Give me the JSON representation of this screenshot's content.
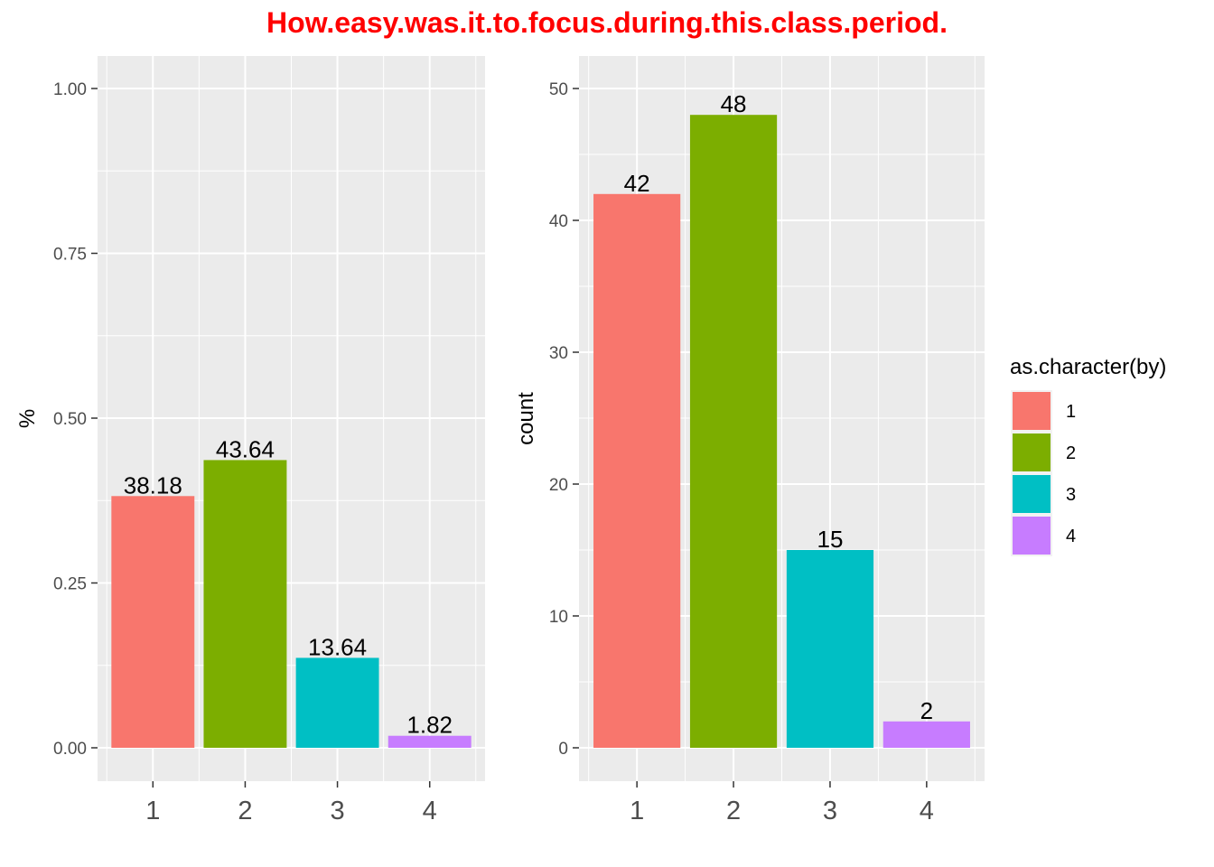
{
  "title": "How.easy.was.it.to.focus.during.this.class.period.",
  "colors": {
    "title": "#ff0000",
    "panel_bg": "#ebebeb",
    "grid": "#ffffff",
    "tick_text": "#4d4d4d",
    "label_text": "#000000",
    "series": [
      "#f8766d",
      "#7cae00",
      "#00bfc4",
      "#c77cff"
    ]
  },
  "legend": {
    "title": "as.character(by)",
    "position": "right",
    "items": [
      "1",
      "2",
      "3",
      "4"
    ]
  },
  "chart_data": [
    {
      "type": "bar",
      "categories": [
        "1",
        "2",
        "3",
        "4"
      ],
      "values": [
        0.3818,
        0.4364,
        0.1364,
        0.0182
      ],
      "labels": [
        "38.18",
        "43.64",
        "13.64",
        "1.82"
      ],
      "xlabel": "",
      "ylabel": "%",
      "ylim": [
        0,
        1.05
      ],
      "yticks": [
        0,
        0.25,
        0.5,
        0.75,
        1.0
      ],
      "ytick_labels": [
        "0.00",
        "0.25",
        "0.50",
        "0.75",
        "1.00"
      ],
      "grid": true
    },
    {
      "type": "bar",
      "categories": [
        "1",
        "2",
        "3",
        "4"
      ],
      "values": [
        42,
        48,
        15,
        2
      ],
      "labels": [
        "42",
        "48",
        "15",
        "2"
      ],
      "xlabel": "",
      "ylabel": "count",
      "ylim": [
        0,
        50.4
      ],
      "yticks": [
        0,
        10,
        20,
        30,
        40,
        50
      ],
      "ytick_labels": [
        "0",
        "10",
        "20",
        "30",
        "40",
        "50"
      ],
      "grid": true
    }
  ]
}
